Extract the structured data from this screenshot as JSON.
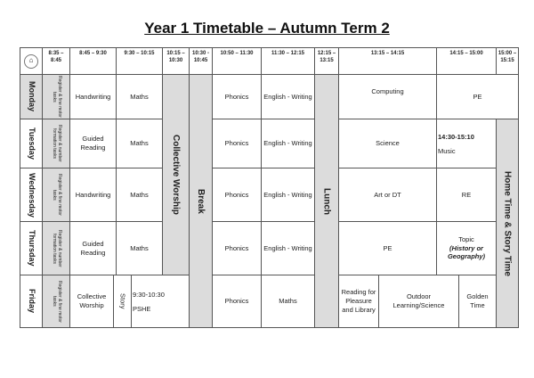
{
  "title": "Year 1 Timetable – Autumn Term 2",
  "logo_icon": "school-logo",
  "times": [
    "8:35 – 8:45",
    "8:45 – 9:30",
    "9:30 – 10:15",
    "10:15 – 10:30",
    "10:30 - 10:45",
    "10:50 – 11:30",
    "11:30 – 12:15",
    "12:15 – 13:15",
    "13:15 – 14:15",
    "14:15 – 15:00",
    "15:00 – 15:15"
  ],
  "days": [
    "Monday",
    "Tuesday",
    "Wednesday",
    "Thursday",
    "Friday"
  ],
  "register": [
    "Register & fine motor tasks",
    "Register & number formation tasks",
    "Register & fine motor tasks",
    "Register & number formation tasks",
    "Register & fine motor tasks"
  ],
  "spans": {
    "collective_worship": "Collective Worship",
    "break": "Break",
    "lunch": "Lunch",
    "home_time": "Home Time & Story Time"
  },
  "monday": {
    "s1": "Handwriting",
    "s2": "Maths",
    "s3": "Phonics",
    "s4": "English - Writing",
    "s5": "Computing",
    "s6": "PE"
  },
  "tuesday": {
    "s1": "Guided Reading",
    "s2": "Maths",
    "s3": "Phonics",
    "s4": "English - Writing",
    "s5": "Science",
    "s6_time": "14:30-15:10",
    "s6": "Music"
  },
  "wednesday": {
    "s1": "Handwriting",
    "s2": "Maths",
    "s3": "Phonics",
    "s4": "English - Writing",
    "s5": "Art or DT",
    "s6": "RE"
  },
  "thursday": {
    "s1": "Guided Reading",
    "s2": "Maths",
    "s3": "Phonics",
    "s4": "English - Writing",
    "s5": "PE",
    "s6": "Topic",
    "s6_note": "(History or Geography)"
  },
  "friday": {
    "s1": "Collective Worship",
    "story": "Story",
    "pshe_time": "9:30-10:30",
    "pshe": "PSHE",
    "s3": "Phonics",
    "s4": "Maths",
    "s5a": "Reading for Pleasure and Library",
    "s5b": "Outdoor Learning/Science",
    "s6": "Golden Time"
  }
}
